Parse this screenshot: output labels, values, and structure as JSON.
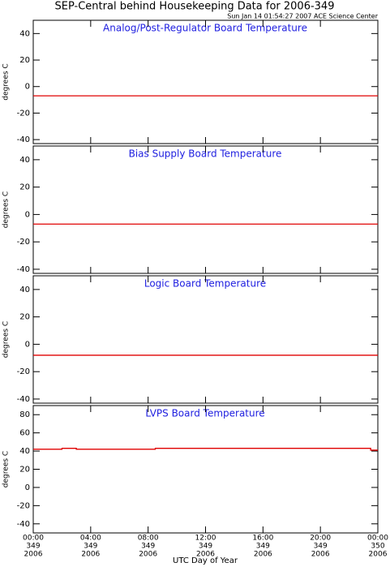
{
  "title": "SEP-Central behind Housekeeping Data for 2006-349",
  "subtitle": "Sun Jan 14 01:54:27 2007 ACE Science Center",
  "xlabel": "UTC Day of Year",
  "chart_data": [
    {
      "type": "line",
      "title": "Analog/Post-Regulator Board Temperature",
      "ylabel": "degrees C",
      "x": [
        0,
        24
      ],
      "series": [
        {
          "color": "#e00000",
          "values": [
            -7,
            -7
          ]
        }
      ],
      "xlim": [
        0,
        24
      ],
      "xticks": [
        0,
        4,
        8,
        12,
        16,
        20,
        24
      ],
      "ylim": [
        -43,
        50
      ],
      "yticks": [
        -40,
        -20,
        0,
        20,
        40
      ]
    },
    {
      "type": "line",
      "title": "Bias Supply Board Temperature",
      "ylabel": "degrees C",
      "x": [
        0,
        24
      ],
      "series": [
        {
          "color": "#e00000",
          "values": [
            -7,
            -7
          ]
        }
      ],
      "xlim": [
        0,
        24
      ],
      "xticks": [
        0,
        4,
        8,
        12,
        16,
        20,
        24
      ],
      "ylim": [
        -43,
        50
      ],
      "yticks": [
        -40,
        -20,
        0,
        20,
        40
      ]
    },
    {
      "type": "line",
      "title": "Logic Board Temperature",
      "ylabel": "degrees C",
      "x": [
        0,
        24
      ],
      "series": [
        {
          "color": "#e00000",
          "values": [
            -8,
            -8
          ]
        }
      ],
      "xlim": [
        0,
        24
      ],
      "xticks": [
        0,
        4,
        8,
        12,
        16,
        20,
        24
      ],
      "ylim": [
        -43,
        50
      ],
      "yticks": [
        -40,
        -20,
        0,
        20,
        40
      ]
    },
    {
      "type": "line",
      "title": "LVPS Board Temperature",
      "ylabel": "degrees C",
      "x": [
        0,
        2,
        2,
        3,
        3,
        8.5,
        8.5,
        23.5,
        23.5,
        24
      ],
      "series": [
        {
          "color": "#e00000",
          "values": [
            42,
            42,
            43,
            43,
            42,
            42,
            43,
            43,
            41,
            41
          ]
        }
      ],
      "xlim": [
        0,
        24
      ],
      "xticks": [
        {
          "value": 0,
          "label": [
            "00:00",
            "349",
            "2006"
          ]
        },
        {
          "value": 4,
          "label": [
            "04:00",
            "349",
            "2006"
          ]
        },
        {
          "value": 8,
          "label": [
            "08:00",
            "349",
            "2006"
          ]
        },
        {
          "value": 12,
          "label": [
            "12:00",
            "349",
            "2006"
          ]
        },
        {
          "value": 16,
          "label": [
            "16:00",
            "349",
            "2006"
          ]
        },
        {
          "value": 20,
          "label": [
            "20:00",
            "349",
            "2006"
          ]
        },
        {
          "value": 24,
          "label": [
            "00:00",
            "350",
            "2006"
          ]
        }
      ],
      "ylim": [
        -50,
        90
      ],
      "yticks": [
        -40,
        -20,
        0,
        20,
        40,
        60,
        80
      ]
    }
  ]
}
